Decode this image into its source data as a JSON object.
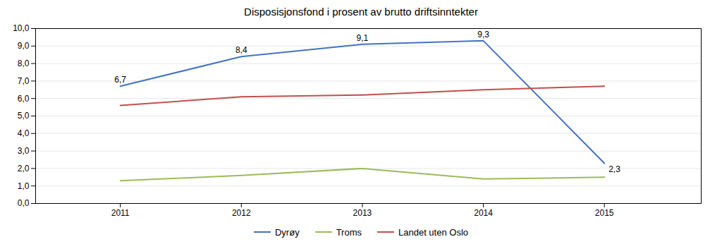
{
  "chart_data": {
    "type": "line",
    "title": "Disposisjonsfond i prosent av brutto driftsinntekter",
    "x": [
      2011,
      2012,
      2013,
      2014,
      2015
    ],
    "series": [
      {
        "name": "Dyrøy",
        "color": "#4472C4",
        "values": [
          6.7,
          8.4,
          9.1,
          9.3,
          2.3
        ],
        "value_labels": [
          "6,7",
          "8,4",
          "9,1",
          "9,3",
          "2,3"
        ]
      },
      {
        "name": "Troms",
        "color": "#9BBB59",
        "values": [
          1.3,
          1.6,
          2.0,
          1.4,
          1.5
        ]
      },
      {
        "name": "Landet uten Oslo",
        "color": "#C0504D",
        "values": [
          5.6,
          6.1,
          6.2,
          6.5,
          6.7
        ]
      }
    ],
    "xlim": [
      2010.3,
      2015.8
    ],
    "xticks": [
      2011,
      2012,
      2013,
      2014,
      2015
    ],
    "ylim": [
      0.0,
      10.0
    ],
    "yticks": [
      {
        "value": 0,
        "label": "0,0"
      },
      {
        "value": 1,
        "label": "1,0"
      },
      {
        "value": 2,
        "label": "2,0"
      },
      {
        "value": 3,
        "label": "3,0"
      },
      {
        "value": 4,
        "label": "4,0"
      },
      {
        "value": 5,
        "label": "5,0"
      },
      {
        "value": 6,
        "label": "6,0"
      },
      {
        "value": 7,
        "label": "7,0"
      },
      {
        "value": 8,
        "label": "8,0"
      },
      {
        "value": 9,
        "label": "9,0"
      },
      {
        "value": 10,
        "label": "10,0"
      }
    ],
    "grid": true,
    "legend": "bottom",
    "data_labels": true
  }
}
